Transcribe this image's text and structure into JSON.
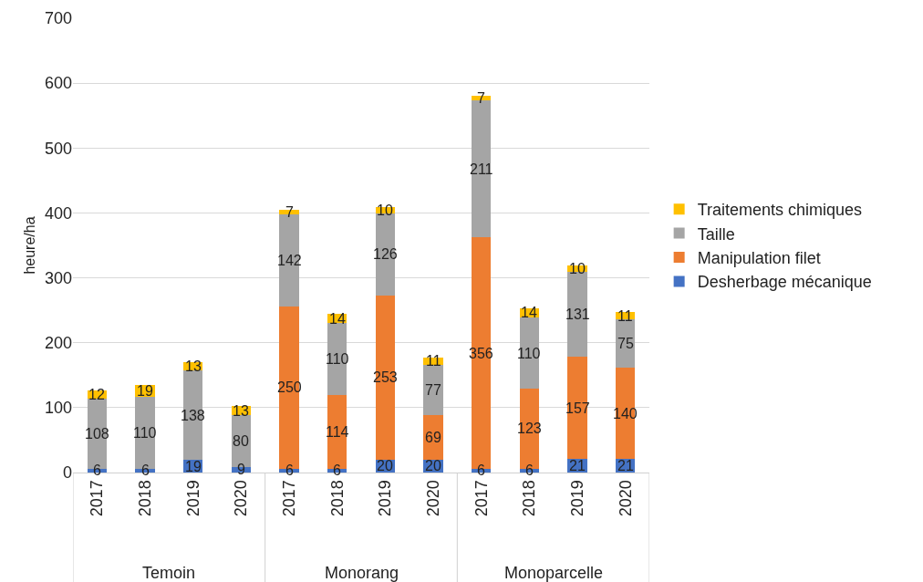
{
  "chart_data": {
    "type": "bar",
    "stacked": true,
    "ylabel": "heure/ha",
    "categories": [
      "2017",
      "2018",
      "2019",
      "2020",
      "2017",
      "2018",
      "2019",
      "2020",
      "2017",
      "2018",
      "2019",
      "2020"
    ],
    "annotations": [
      "Temoin",
      "Monorang",
      "Monoparcelle"
    ],
    "series": [
      {
        "name": "Desherbage mécanique",
        "color": "#4472c4",
        "values": [
          6,
          6,
          19,
          9,
          6,
          6,
          20,
          20,
          6,
          6,
          21,
          21
        ],
        "value_labels": [
          "6",
          "6",
          "19",
          "9",
          "6",
          "6",
          "20",
          "20",
          "6",
          "6",
          "21",
          "21"
        ]
      },
      {
        "name": "Manipulation filet",
        "color": "#ed7d31",
        "values": [
          0,
          0,
          0,
          0,
          250,
          114,
          253,
          69,
          356,
          123,
          157,
          140
        ],
        "value_labels": [
          null,
          null,
          null,
          null,
          "250",
          "114",
          "253",
          "69",
          "356",
          "123",
          "157",
          "140"
        ]
      },
      {
        "name": "Taille",
        "color": "#a5a5a5",
        "values": [
          108,
          110,
          138,
          80,
          142,
          110,
          126,
          77,
          211,
          110,
          131,
          75
        ],
        "value_labels": [
          "108",
          "110",
          "138",
          "80",
          "142",
          "110",
          "126",
          "77",
          "211",
          "110",
          "131",
          "75"
        ]
      },
      {
        "name": "Traitements chimiques",
        "color": "#ffc000",
        "values": [
          12,
          19,
          13,
          13,
          7,
          14,
          10,
          11,
          7,
          14,
          10,
          11
        ],
        "value_labels": [
          "12",
          "19",
          "13",
          "13",
          "7",
          "14",
          "10",
          "11",
          "7",
          "14",
          "10",
          "11"
        ]
      }
    ],
    "ylim": [
      0,
      700
    ],
    "yticks": [
      0,
      100,
      200,
      300,
      400,
      500,
      600,
      700
    ],
    "grid": "y",
    "legend": "right"
  }
}
